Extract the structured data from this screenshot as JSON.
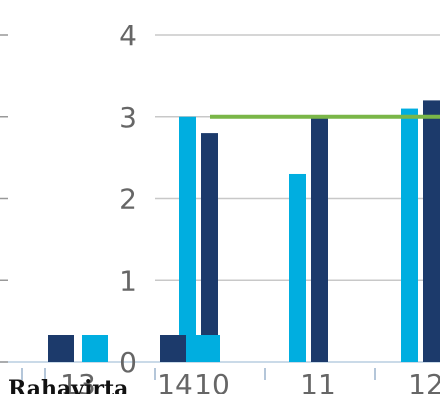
{
  "chart_data": {
    "type": "bar",
    "title": "",
    "xlabel": "",
    "ylabel": "",
    "ylim": [
      0,
      4
    ],
    "yticks": [
      "0",
      "1",
      "2",
      "3",
      "4"
    ],
    "grid": true,
    "reference_line": {
      "value": 3.0,
      "color": "#7ab648"
    },
    "categories": [
      "13",
      "14",
      "10",
      "11",
      "12"
    ],
    "series": [
      {
        "color": "#00aee0",
        "values": [
          null,
          3.0,
          null,
          2.3,
          3.1
        ]
      },
      {
        "color": "#1c3a6b",
        "values": [
          null,
          2.8,
          null,
          3.0,
          3.2
        ]
      }
    ],
    "legend": {
      "placement": "bottom-left",
      "label": "Rahavirta",
      "swatches": [
        {
          "color": "#1c3a6b"
        },
        {
          "color": "#00aee0"
        },
        {
          "color": "#1c3a6b"
        },
        {
          "color": "#00aee0"
        }
      ]
    }
  }
}
